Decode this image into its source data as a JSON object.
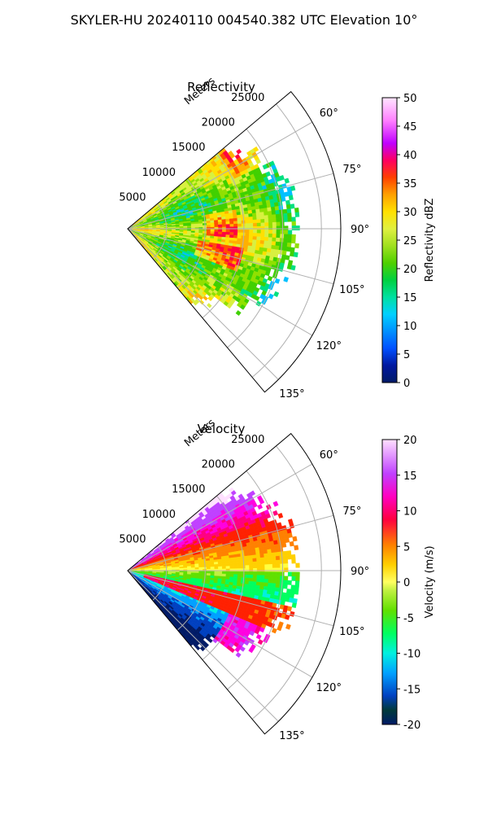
{
  "figure": {
    "suptitle": "SKYLER-HU  20240110  004540.382 UTC Elevation 10°"
  },
  "chart_data": [
    {
      "type": "heatmap",
      "title": "Reflectivity",
      "range_label": "Meters",
      "range_ticks": [
        5000,
        10000,
        15000,
        20000,
        25000
      ],
      "range_tick_labels": [
        "5000",
        "10000",
        "15000",
        "20000",
        "25000"
      ],
      "azimuth_ticks": [
        60,
        75,
        90,
        105,
        120,
        135
      ],
      "azimuth_tick_labels": [
        "60°",
        "75°",
        "90°",
        "105°",
        "120°",
        "135°"
      ],
      "azimuth_range": [
        50,
        140
      ],
      "range_max": 27500,
      "colorbar": {
        "label": "Reflectivity dBZ",
        "ticks": [
          0,
          5,
          10,
          15,
          20,
          25,
          30,
          35,
          40,
          45,
          50
        ],
        "tick_labels": [
          "0",
          "5",
          "10",
          "15",
          "20",
          "25",
          "30",
          "35",
          "40",
          "45",
          "50"
        ],
        "range": [
          0,
          50
        ]
      },
      "data_extent_m": 22000,
      "description_values": "Mostly 20-30 dBZ echoes with 35-40 dBZ patches"
    },
    {
      "type": "heatmap",
      "title": "Velocity",
      "range_label": "Meters",
      "range_ticks": [
        5000,
        10000,
        15000,
        20000,
        25000
      ],
      "range_tick_labels": [
        "5000",
        "10000",
        "15000",
        "20000",
        "25000"
      ],
      "azimuth_ticks": [
        60,
        75,
        90,
        105,
        120,
        135
      ],
      "azimuth_tick_labels": [
        "60°",
        "75°",
        "90°",
        "105°",
        "120°",
        "135°"
      ],
      "azimuth_range": [
        50,
        140
      ],
      "range_max": 27500,
      "colorbar": {
        "label": "Velocity (m/s)",
        "ticks": [
          -20,
          -15,
          -10,
          -5,
          0,
          5,
          10,
          15,
          20
        ],
        "tick_labels": [
          "-20",
          "-15",
          "-10",
          "-5",
          "0",
          "5",
          "10",
          "15",
          "20"
        ],
        "range": [
          -20,
          20
        ]
      },
      "data_extent_m": 22000
    }
  ]
}
